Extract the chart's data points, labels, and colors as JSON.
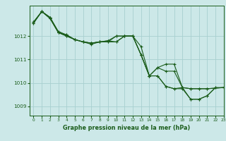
{
  "title": "Graphe pression niveau de la mer (hPa)",
  "background_color": "#cce8e8",
  "line_color": "#1a5c1a",
  "grid_color": "#a8d0d0",
  "xlim": [
    -0.5,
    23
  ],
  "ylim": [
    1008.6,
    1013.3
  ],
  "yticks": [
    1009,
    1010,
    1011,
    1012
  ],
  "ytick_labels": [
    "1009",
    "1010",
    "1011",
    "1012"
  ],
  "xticks": [
    0,
    1,
    2,
    3,
    4,
    5,
    6,
    7,
    8,
    9,
    10,
    11,
    12,
    13,
    14,
    15,
    16,
    17,
    18,
    19,
    20,
    21,
    22,
    23
  ],
  "series": [
    {
      "x": [
        0,
        1,
        2,
        3,
        4,
        5,
        6,
        7,
        8,
        9,
        10,
        11,
        12,
        13,
        14,
        15,
        16,
        17,
        18,
        19,
        20,
        21,
        22
      ],
      "y": [
        1012.6,
        1013.05,
        1012.8,
        1012.2,
        1012.05,
        1011.85,
        1011.75,
        1011.65,
        1011.75,
        1011.8,
        1011.75,
        1012.0,
        1012.0,
        1011.55,
        1010.3,
        1010.3,
        1009.85,
        1009.75,
        1009.75,
        1009.3,
        1009.3,
        1009.45,
        1009.8
      ]
    },
    {
      "x": [
        0,
        1,
        2,
        3,
        4,
        5,
        6,
        7,
        8,
        9,
        10,
        11,
        12,
        13,
        14,
        15,
        16,
        17,
        18,
        19,
        20,
        21,
        22,
        23
      ],
      "y": [
        1012.6,
        1013.05,
        1012.8,
        1012.15,
        1012.0,
        1011.85,
        1011.75,
        1011.7,
        1011.75,
        1011.8,
        1012.0,
        1012.0,
        1012.0,
        1011.2,
        1010.3,
        1010.3,
        1009.85,
        1009.75,
        1009.8,
        1009.3,
        1009.3,
        1009.45,
        1009.8,
        1009.8
      ]
    },
    {
      "x": [
        0,
        1,
        2,
        3,
        4,
        5,
        6,
        7,
        8,
        9,
        10,
        11,
        12,
        13,
        14,
        15,
        16,
        17,
        18,
        19,
        20,
        21,
        23
      ],
      "y": [
        1012.55,
        1013.05,
        1012.75,
        1012.15,
        1012.05,
        1011.85,
        1011.75,
        1011.7,
        1011.75,
        1011.75,
        1012.0,
        1012.0,
        1012.0,
        1011.2,
        1010.3,
        1010.65,
        1010.8,
        1010.8,
        1009.8,
        1009.75,
        1009.75,
        1009.75,
        1009.8
      ]
    },
    {
      "x": [
        0,
        1,
        2,
        3,
        4,
        5,
        6,
        7,
        8,
        9,
        10,
        11,
        12,
        13,
        14,
        15,
        16,
        17,
        18,
        19,
        20,
        21,
        23
      ],
      "y": [
        1012.55,
        1013.05,
        1012.75,
        1012.15,
        1012.0,
        1011.85,
        1011.75,
        1011.7,
        1011.75,
        1011.75,
        1011.75,
        1012.0,
        1012.0,
        1011.2,
        1010.3,
        1010.65,
        1010.5,
        1010.5,
        1009.8,
        1009.75,
        1009.75,
        1009.75,
        1009.8
      ]
    }
  ]
}
